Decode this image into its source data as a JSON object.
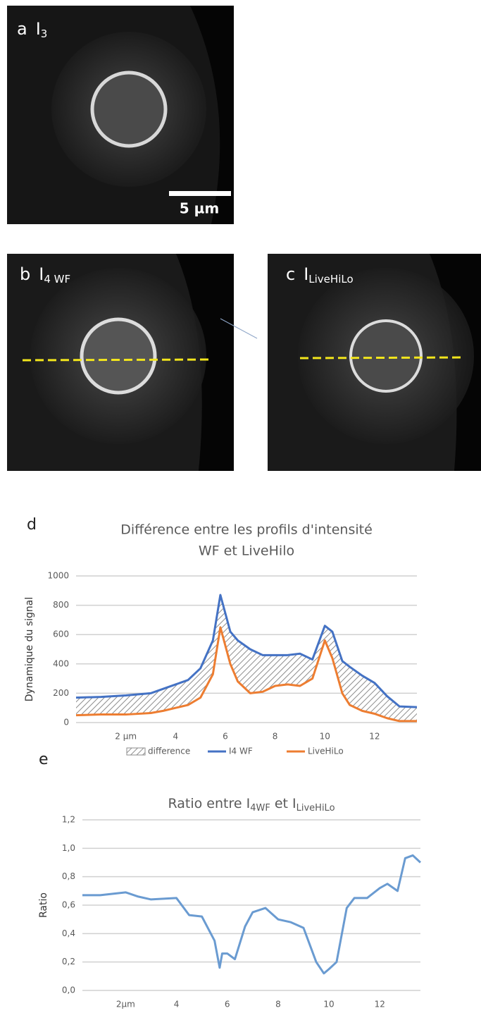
{
  "panels": [
    {
      "letter": "a",
      "label": "I",
      "subscript": "3"
    },
    {
      "letter": "b",
      "label": "I",
      "subscript": "4 WF"
    },
    {
      "letter": "c",
      "label": "I",
      "subscript": "LiveHiLo"
    }
  ],
  "scale_bar": "5 µm",
  "chart_data": [
    {
      "type": "line",
      "panel": "d",
      "title_lines": [
        "Différence entre les profils d'intensité",
        "WF et LiveHilo"
      ],
      "y_label": "Dynamique du signal",
      "x": [
        0,
        1,
        2,
        3,
        3.5,
        4,
        4.5,
        5,
        5.5,
        5.8,
        6.2,
        6.5,
        7,
        7.5,
        8,
        8.5,
        9,
        9.5,
        10,
        10.3,
        10.7,
        11,
        11.5,
        12,
        12.5,
        13,
        13.7
      ],
      "series": [
        {
          "name": "difference",
          "color": "#8c8c8c",
          "style": "hatched-area",
          "values": [
            120,
            120,
            130,
            135,
            150,
            160,
            170,
            200,
            230,
            220,
            220,
            280,
            300,
            250,
            210,
            200,
            220,
            130,
            100,
            180,
            220,
            260,
            240,
            210,
            150,
            100,
            95
          ]
        },
        {
          "name": "I4 WF",
          "color": "#4472c4",
          "values": [
            170,
            175,
            185,
            200,
            230,
            260,
            290,
            370,
            560,
            870,
            620,
            560,
            500,
            460,
            460,
            460,
            470,
            430,
            660,
            620,
            420,
            380,
            320,
            270,
            180,
            110,
            105
          ]
        },
        {
          "name": "LiveHiLo",
          "color": "#ed7d31",
          "values": [
            50,
            55,
            55,
            65,
            80,
            100,
            120,
            170,
            330,
            650,
            400,
            280,
            200,
            210,
            250,
            260,
            250,
            300,
            560,
            440,
            200,
            120,
            80,
            60,
            30,
            10,
            10
          ]
        }
      ],
      "xlim": [
        0,
        13.7
      ],
      "xticks": [
        {
          "value": 2,
          "label": "2 µm"
        },
        4,
        6,
        8,
        10,
        12
      ],
      "ylim": [
        0,
        1000
      ],
      "yticks": [
        0,
        200,
        400,
        600,
        800,
        1000
      ],
      "grid": true,
      "legend": "bottom"
    },
    {
      "type": "line",
      "panel": "e",
      "title_parts": [
        {
          "text": "Ratio entre I"
        },
        {
          "text": "4WF",
          "sub": true
        },
        {
          "text": " et I"
        },
        {
          "text": "LiveHiLo",
          "sub": true
        }
      ],
      "y_label": "Ratio",
      "x": [
        0.3,
        1,
        2,
        2.5,
        3,
        4,
        4.5,
        5,
        5.5,
        5.7,
        5.8,
        6,
        6.3,
        6.7,
        7,
        7.5,
        8,
        8.5,
        9,
        9.5,
        9.8,
        10,
        10.3,
        10.7,
        11,
        11.5,
        12,
        12.3,
        12.7,
        13,
        13.3,
        13.6
      ],
      "series": [
        {
          "name": "Ratio",
          "color": "#6a9bd1",
          "values": [
            0.67,
            0.67,
            0.69,
            0.66,
            0.64,
            0.65,
            0.53,
            0.52,
            0.35,
            0.16,
            0.26,
            0.26,
            0.22,
            0.45,
            0.55,
            0.58,
            0.5,
            0.48,
            0.44,
            0.2,
            0.12,
            0.15,
            0.2,
            0.58,
            0.65,
            0.65,
            0.72,
            0.75,
            0.7,
            0.93,
            0.95,
            0.9
          ]
        }
      ],
      "xlim": [
        0.3,
        13.6
      ],
      "xticks": [
        {
          "value": 2,
          "label": "2µm"
        },
        4,
        6,
        8,
        10,
        12
      ],
      "ylim": [
        0,
        1.2
      ],
      "yticks": [
        {
          "value": 0,
          "label": "0,0"
        },
        {
          "value": 0.2,
          "label": "0,2"
        },
        {
          "value": 0.4,
          "label": "0,4"
        },
        {
          "value": 0.6,
          "label": "0,6"
        },
        {
          "value": 0.8,
          "label": "0,8"
        },
        {
          "value": 1,
          "label": "1,0"
        },
        {
          "value": 1.2,
          "label": "1,2"
        }
      ],
      "grid": true
    }
  ]
}
